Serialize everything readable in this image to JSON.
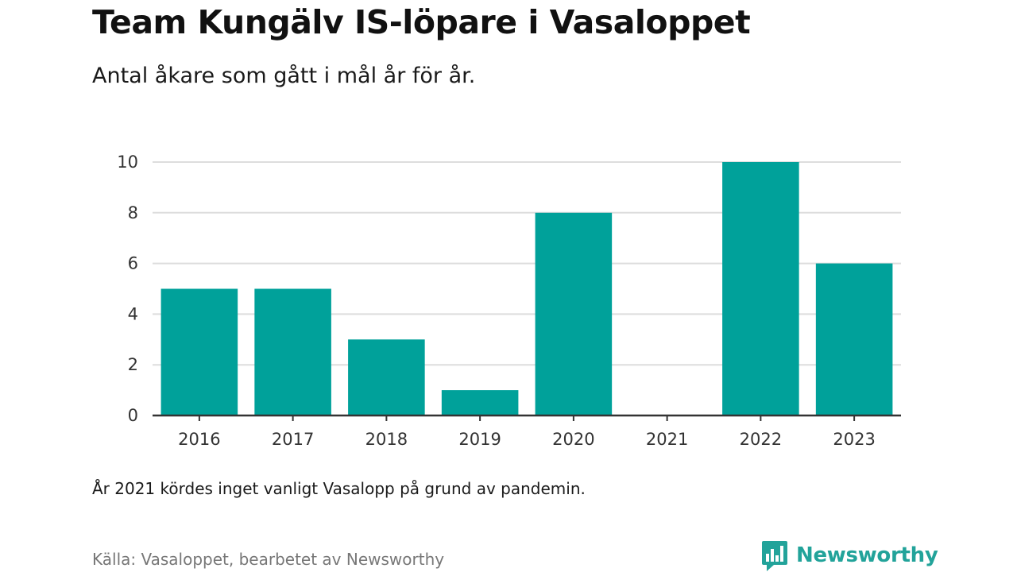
{
  "title": "Team Kungälv IS-löpare i Vasaloppet",
  "subtitle": "Antal åkare som gått i mål år för år.",
  "note": "År 2021 kördes inget vanligt Vasalopp på grund av pandemin.",
  "source": "Källa: Vasaloppet, bearbetet av Newsworthy",
  "brand": {
    "name": "Newsworthy",
    "icon": "newsworthy-logo-icon",
    "color": "#22a39a"
  },
  "colors": {
    "bar": "#00a19a",
    "grid": "#dddddd",
    "axis": "#333333"
  },
  "chart_data": {
    "type": "bar",
    "categories": [
      "2016",
      "2017",
      "2018",
      "2019",
      "2020",
      "2021",
      "2022",
      "2023"
    ],
    "values": [
      5,
      5,
      3,
      1,
      8,
      0,
      10,
      6
    ],
    "yticks": [
      0,
      2,
      4,
      6,
      8,
      10
    ],
    "ylim": [
      0,
      10
    ],
    "grid": true,
    "xlabel": "",
    "ylabel": ""
  }
}
